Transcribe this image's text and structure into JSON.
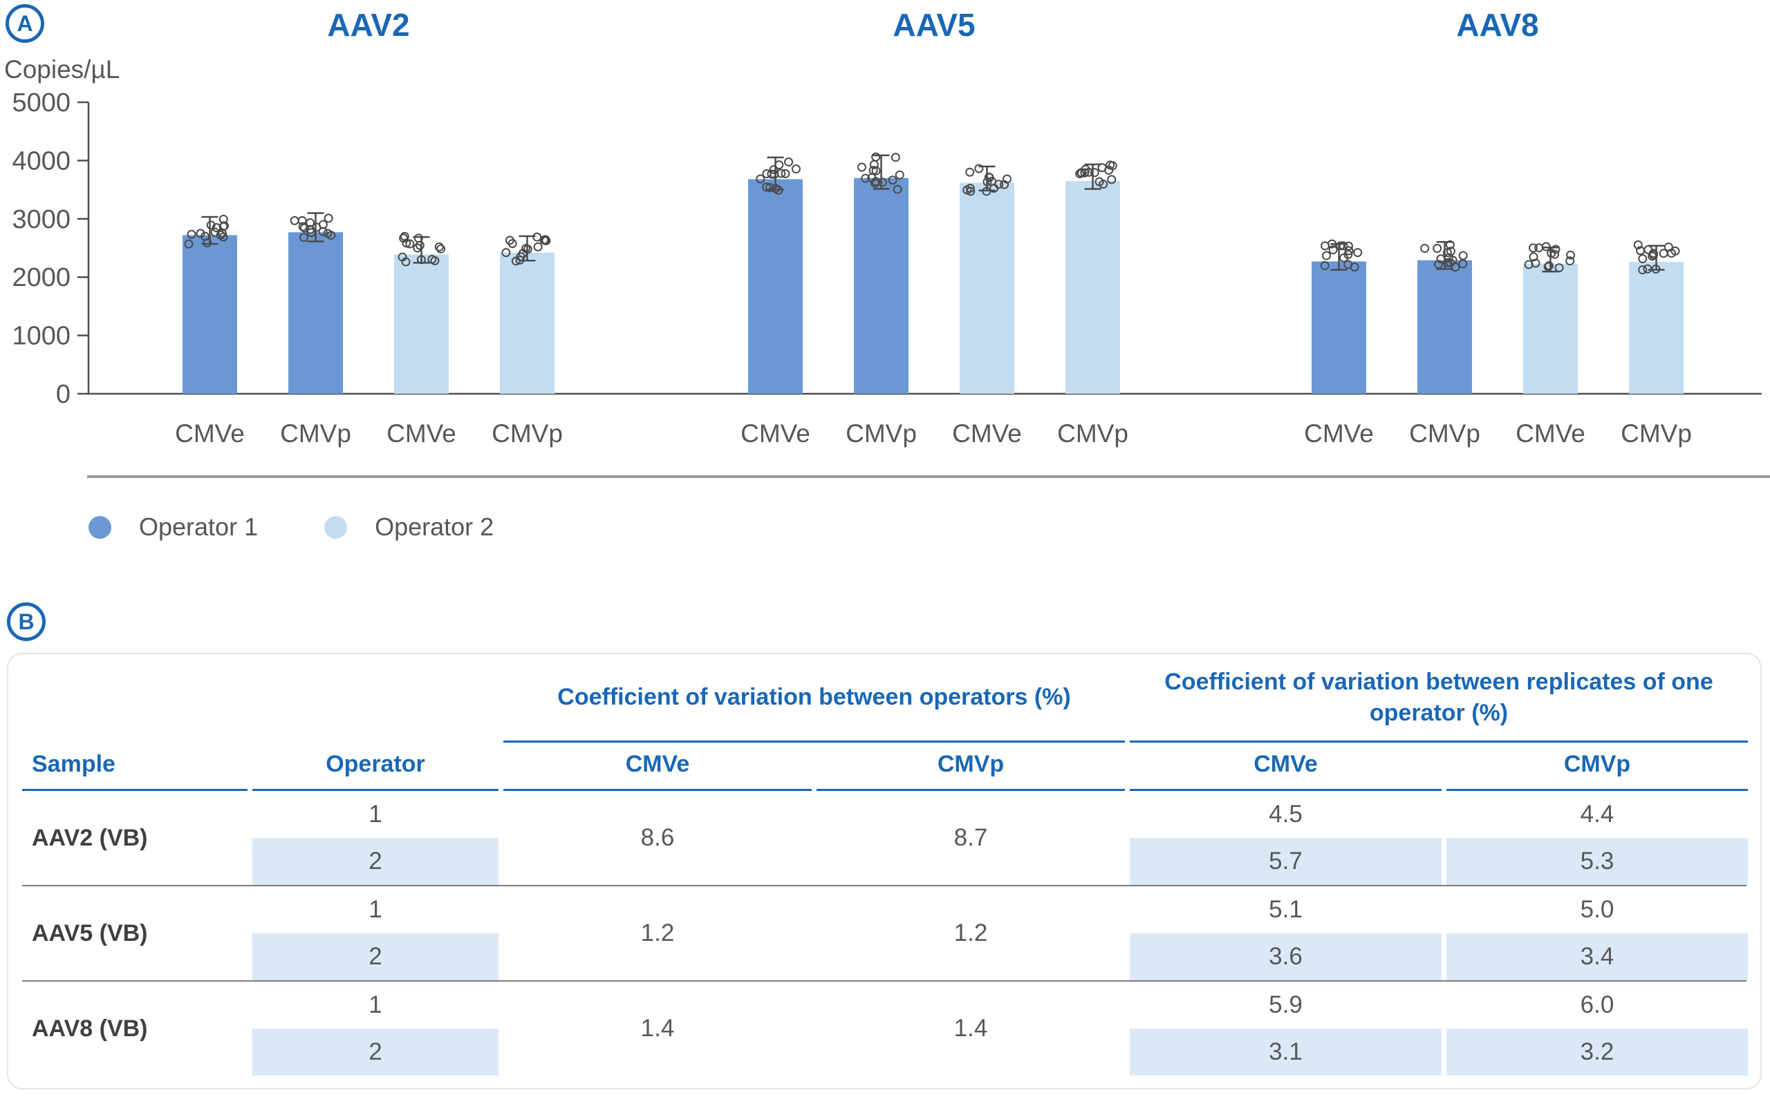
{
  "panel_a": {
    "badge": "A",
    "y_axis_label": "Copies/µL",
    "legend": [
      {
        "label": "Operator 1"
      },
      {
        "label": "Operator 2"
      }
    ]
  },
  "chart_data": {
    "type": "bar",
    "title": "",
    "ylabel": "Copies/µL",
    "ylim": [
      0,
      5000
    ],
    "yticks": [
      0,
      1000,
      2000,
      3000,
      4000,
      5000
    ],
    "grid": false,
    "legend_position": "bottom-left",
    "error_bars": "mean ± SD",
    "replicate_points_per_bar": 14,
    "series_colors": {
      "Operator 1": "#6b98d5",
      "Operator 2": "#c2ddf2"
    },
    "groups": [
      {
        "title": "AAV2",
        "bars": [
          {
            "x_label": "CMVe",
            "series": "Operator 1",
            "value": 2720,
            "sd": 130
          },
          {
            "x_label": "CMVp",
            "series": "Operator 1",
            "value": 2770,
            "sd": 140
          },
          {
            "x_label": "CMVe",
            "series": "Operator 2",
            "value": 2390,
            "sd": 120
          },
          {
            "x_label": "CMVp",
            "series": "Operator 2",
            "value": 2420,
            "sd": 110
          }
        ]
      },
      {
        "title": "AAV5",
        "bars": [
          {
            "x_label": "CMVe",
            "series": "Operator 1",
            "value": 3680,
            "sd": 170
          },
          {
            "x_label": "CMVp",
            "series": "Operator 1",
            "value": 3700,
            "sd": 180
          },
          {
            "x_label": "CMVe",
            "series": "Operator 2",
            "value": 3620,
            "sd": 100
          },
          {
            "x_label": "CMVp",
            "series": "Operator 2",
            "value": 3650,
            "sd": 110
          }
        ]
      },
      {
        "title": "AAV8",
        "bars": [
          {
            "x_label": "CMVe",
            "series": "Operator 1",
            "value": 2270,
            "sd": 120
          },
          {
            "x_label": "CMVp",
            "series": "Operator 1",
            "value": 2290,
            "sd": 130
          },
          {
            "x_label": "CMVe",
            "series": "Operator 2",
            "value": 2230,
            "sd": 60
          },
          {
            "x_label": "CMVp",
            "series": "Operator 2",
            "value": 2260,
            "sd": 70
          }
        ]
      }
    ]
  },
  "panel_b": {
    "badge": "B",
    "table": {
      "headers": {
        "sample": "Sample",
        "operator": "Operator",
        "group1": "Coefficient of variation between operators (%)",
        "group2": "Coefficient of variation between replicates of one operator (%)",
        "sub": [
          "CMVe",
          "CMVp",
          "CMVe",
          "CMVp"
        ]
      },
      "rows": [
        {
          "sample": "AAV2 (VB)",
          "between": {
            "cmve": "8.6",
            "cmvp": "8.7"
          },
          "operators": [
            {
              "operator": "1",
              "cmve": "4.5",
              "cmvp": "4.4"
            },
            {
              "operator": "2",
              "cmve": "5.7",
              "cmvp": "5.3"
            }
          ]
        },
        {
          "sample": "AAV5 (VB)",
          "between": {
            "cmve": "1.2",
            "cmvp": "1.2"
          },
          "operators": [
            {
              "operator": "1",
              "cmve": "5.1",
              "cmvp": "5.0"
            },
            {
              "operator": "2",
              "cmve": "3.6",
              "cmvp": "3.4"
            }
          ]
        },
        {
          "sample": "AAV8 (VB)",
          "between": {
            "cmve": "1.4",
            "cmvp": "1.4"
          },
          "operators": [
            {
              "operator": "1",
              "cmve": "5.9",
              "cmvp": "6.0"
            },
            {
              "operator": "2",
              "cmve": "3.1",
              "cmvp": "3.2"
            }
          ]
        }
      ]
    }
  },
  "colors": {
    "accent_blue": "#1a67b5",
    "bar_operator1": "#6b98d5",
    "bar_operator2": "#c2ddf2",
    "row_highlight": "#dbe9f7",
    "axis_gray": "#4c4d4f",
    "text_gray": "#56575a",
    "divider_gray": "#9a9a9a",
    "separator_gray": "#7c7c7c",
    "table_border": "#e2e6ea",
    "point_stroke": "#4a4a4b"
  }
}
